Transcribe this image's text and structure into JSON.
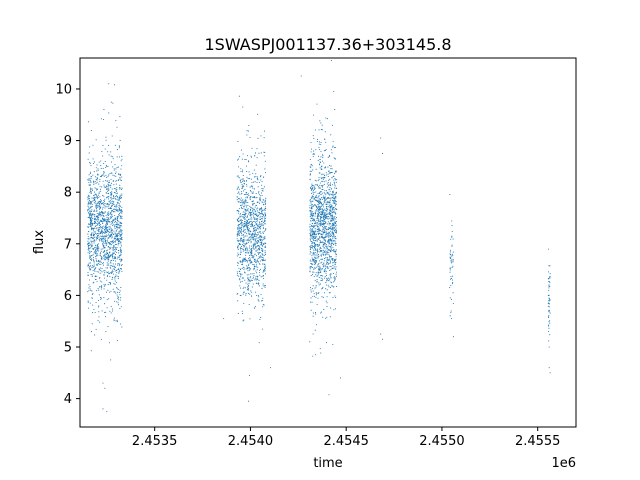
{
  "chart_data": {
    "type": "scatter",
    "title": "1SWASPJ001137.36+303145.8",
    "xlabel": "time",
    "ylabel": "flux",
    "x_offset_label": "1e6",
    "xlim": [
      2453110,
      2455700
    ],
    "ylim": [
      3.45,
      10.6
    ],
    "grid": false,
    "legend": "none",
    "marker_color": "#1f77b4",
    "x_ticks": [
      2453500,
      2454000,
      2454500,
      2455000,
      2455500
    ],
    "x_tick_labels": [
      "2.4535",
      "2.4540",
      "2.4545",
      "2.4550",
      "2.4555"
    ],
    "y_ticks": [
      4,
      5,
      6,
      7,
      8,
      9,
      10
    ],
    "y_tick_labels": [
      "4",
      "5",
      "6",
      "7",
      "8",
      "9",
      "10"
    ],
    "clusters": [
      {
        "x_start": 2453150,
        "x_end": 2453330,
        "y_mean": 7.25,
        "y_spread": 0.65,
        "count": 1500
      },
      {
        "x_start": 2453930,
        "x_end": 2454080,
        "y_mean": 7.2,
        "y_spread": 0.6,
        "count": 1100
      },
      {
        "x_start": 2454310,
        "x_end": 2454450,
        "y_mean": 7.3,
        "y_spread": 0.62,
        "count": 1400
      },
      {
        "x_start": 2455040,
        "x_end": 2455060,
        "y_mean": 6.6,
        "y_spread": 0.45,
        "count": 50
      },
      {
        "x_start": 2455555,
        "x_end": 2455565,
        "y_mean": 6.0,
        "y_spread": 0.45,
        "count": 50
      }
    ],
    "points": [
      {
        "x": 2453260,
        "y": 10.1
      },
      {
        "x": 2453290,
        "y": 10.08
      },
      {
        "x": 2454265,
        "y": 10.25
      },
      {
        "x": 2454435,
        "y": 9.95
      },
      {
        "x": 2453235,
        "y": 9.6
      },
      {
        "x": 2453960,
        "y": 9.65
      },
      {
        "x": 2454440,
        "y": 9.6
      },
      {
        "x": 2454680,
        "y": 9.05
      },
      {
        "x": 2454690,
        "y": 8.75
      },
      {
        "x": 2454680,
        "y": 5.25
      },
      {
        "x": 2454690,
        "y": 5.15
      },
      {
        "x": 2455050,
        "y": 5.55
      },
      {
        "x": 2455060,
        "y": 5.2
      },
      {
        "x": 2455560,
        "y": 4.6
      },
      {
        "x": 2455565,
        "y": 4.5
      },
      {
        "x": 2455560,
        "y": 5.0
      },
      {
        "x": 2453230,
        "y": 4.3
      },
      {
        "x": 2453240,
        "y": 4.2
      },
      {
        "x": 2453230,
        "y": 3.8
      },
      {
        "x": 2453250,
        "y": 3.75
      },
      {
        "x": 2453270,
        "y": 4.75
      },
      {
        "x": 2453990,
        "y": 3.95
      },
      {
        "x": 2453995,
        "y": 4.45
      },
      {
        "x": 2454105,
        "y": 4.6
      },
      {
        "x": 2454340,
        "y": 4.85
      },
      {
        "x": 2454470,
        "y": 4.4
      },
      {
        "x": 2453860,
        "y": 5.55
      },
      {
        "x": 2453170,
        "y": 5.3
      },
      {
        "x": 2454310,
        "y": 5.1
      }
    ]
  }
}
